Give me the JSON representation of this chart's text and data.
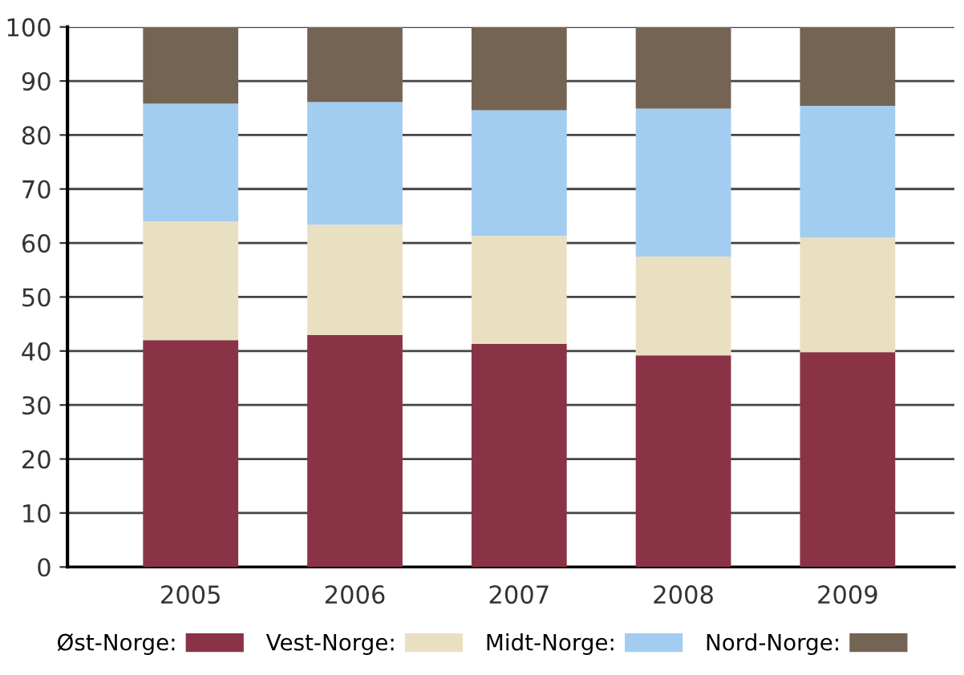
{
  "chart_data": {
    "type": "bar",
    "stacked": true,
    "categories": [
      "2005",
      "2006",
      "2007",
      "2008",
      "2009"
    ],
    "series": [
      {
        "name": "Øst-Norge:",
        "color": "#8b3346",
        "values": [
          42,
          43,
          41.3,
          39.2,
          39.8
        ]
      },
      {
        "name": "Vest-Norge:",
        "color": "#e9e0c2",
        "values": [
          22,
          20.4,
          20,
          18.3,
          21.2
        ]
      },
      {
        "name": "Midt-Norge:",
        "color": "#a3cdf0",
        "values": [
          21.8,
          22.7,
          23.3,
          27.4,
          24.4
        ]
      },
      {
        "name": "Nord-Norge:",
        "color": "#746453",
        "values": [
          14.2,
          13.9,
          15.4,
          15.1,
          14.6
        ]
      }
    ],
    "ylim": [
      0,
      100
    ],
    "yticks": [
      0,
      10,
      20,
      30,
      40,
      50,
      60,
      70,
      80,
      90,
      100
    ],
    "grid": "y",
    "legend": "bottom"
  }
}
